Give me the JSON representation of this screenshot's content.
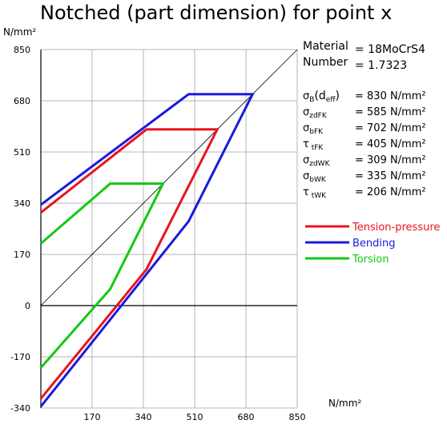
{
  "title": "Notched (part dimension) for point x",
  "material": {
    "label1": "Material",
    "label2": "Number",
    "value1": "= 18MoCrS4",
    "value2": "= 1.7323"
  },
  "properties": [
    {
      "sym": "σ",
      "sub": "B",
      "extra": "(d",
      "extra_sub": "eff",
      "extra_end": ")",
      "value": "= 830  N/mm²"
    },
    {
      "sym": "σ",
      "sub": "zdFK",
      "value": "= 585  N/mm²"
    },
    {
      "sym": "σ",
      "sub": "bFK",
      "value": "= 702  N/mm²"
    },
    {
      "sym": "τ",
      "sub": " tFK",
      "value": "= 405  N/mm²"
    },
    {
      "sym": "σ",
      "sub": "zdWK",
      "value": "= 309  N/mm²"
    },
    {
      "sym": "σ",
      "sub": "bWK",
      "value": "= 335  N/mm²"
    },
    {
      "sym": "τ",
      "sub": " tWK",
      "value": "= 206  N/mm²"
    }
  ],
  "chart_data": {
    "type": "line",
    "title": "Notched (part dimension) for point x",
    "xlabel": "N/mm²",
    "ylabel": "N/mm²",
    "xlim": [
      0,
      850
    ],
    "ylim": [
      -340,
      850
    ],
    "xticks": [
      170,
      340,
      510,
      680,
      850
    ],
    "yticks": [
      850,
      680,
      510,
      340,
      170,
      0,
      -170,
      -340
    ],
    "grid": true,
    "legend_position": "right",
    "reference_line": {
      "x": [
        0,
        850
      ],
      "y": [
        0,
        850
      ]
    },
    "series": [
      {
        "name": "Bending",
        "color": "#1a1adc",
        "x": [
          0,
          490,
          702,
          490,
          0
        ],
        "y": [
          335,
          702,
          702,
          280,
          -335
        ]
      },
      {
        "name": "Tension-pressure",
        "color": "#e8141e",
        "x": [
          0,
          350,
          585,
          350,
          0
        ],
        "y": [
          309,
          585,
          585,
          120,
          -309
        ]
      },
      {
        "name": "Torsion",
        "color": "#14c814",
        "x": [
          0,
          230,
          405,
          230,
          0
        ],
        "y": [
          206,
          405,
          405,
          55,
          -206
        ]
      }
    ]
  }
}
